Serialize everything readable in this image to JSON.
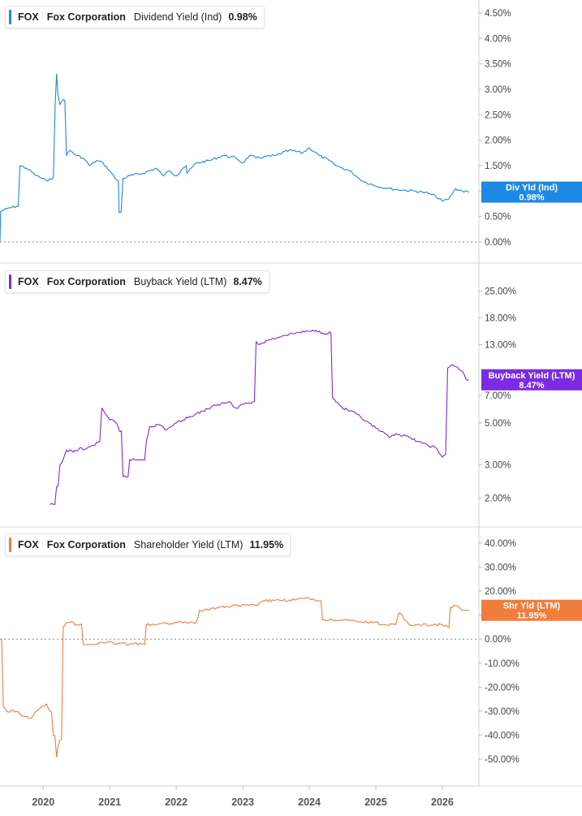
{
  "chart_data": [
    {
      "type": "line",
      "ticker": "FOX",
      "company": "Fox Corporation",
      "metric": "Dividend Yield (Ind)",
      "current_value": "0.98%",
      "badge": "Div Yld (Ind)",
      "color": "#1e88e5",
      "scale": "linear",
      "ylim": [
        0,
        4.5
      ],
      "y_ticks": [
        "0.00%",
        "0.50%",
        "1.00%",
        "1.50%",
        "2.00%",
        "2.50%",
        "3.00%",
        "3.50%",
        "4.00%",
        "4.50%"
      ],
      "zero_line": true,
      "series": [
        {
          "x": [
            2019.35,
            2019.36,
            2019.45,
            2019.6,
            2019.65,
            2019.75,
            2019.9,
            2020.05,
            2020.1,
            2020.18,
            2020.2,
            2020.22,
            2020.25,
            2020.3,
            2020.35,
            2020.4,
            2020.5,
            2020.6,
            2020.7,
            2020.8,
            2020.9,
            2021.0,
            2021.08,
            2021.13,
            2021.14,
            2021.2,
            2021.3,
            2021.5,
            2021.7,
            2021.8,
            2021.9,
            2022.0,
            2022.1,
            2022.15,
            2022.16,
            2022.3,
            2022.5,
            2022.7,
            2022.9,
            2023.0,
            2023.1,
            2023.2,
            2023.5,
            2023.7,
            2023.9,
            2024.0,
            2024.15,
            2024.3,
            2024.4,
            2024.5,
            2024.6,
            2024.65,
            2024.7,
            2024.8,
            2025.0,
            2025.2,
            2025.4,
            2025.6,
            2025.7,
            2025.8,
            2025.9,
            2026.0,
            2026.1,
            2026.2,
            2026.3,
            2026.4
          ],
          "y": [
            0,
            0.6,
            0.65,
            0.7,
            1.5,
            1.45,
            1.3,
            1.2,
            1.25,
            2.7,
            3.3,
            2.9,
            2.7,
            2.8,
            1.7,
            1.8,
            1.7,
            1.65,
            1.5,
            1.6,
            1.55,
            1.4,
            1.25,
            1.2,
            0.58,
            1.25,
            1.3,
            1.35,
            1.45,
            1.3,
            1.4,
            1.3,
            1.45,
            1.5,
            1.35,
            1.55,
            1.6,
            1.7,
            1.65,
            1.55,
            1.7,
            1.65,
            1.7,
            1.8,
            1.75,
            1.85,
            1.7,
            1.6,
            1.5,
            1.45,
            1.4,
            1.35,
            1.3,
            1.2,
            1.1,
            1.05,
            1.02,
            1.0,
            0.98,
            0.95,
            0.9,
            0.8,
            0.85,
            1.05,
            1.0,
            0.98
          ]
        }
      ]
    },
    {
      "type": "line",
      "ticker": "FOX",
      "company": "Fox Corporation",
      "metric": "Buyback Yield (LTM)",
      "current_value": "8.47%",
      "badge": "Buyback Yield (LTM)",
      "color": "#7b2be2",
      "scale": "log",
      "ylim": [
        1.7,
        30
      ],
      "y_ticks": [
        "2.00%",
        "3.00%",
        "5.00%",
        "7.00%",
        "13.00%",
        "18.00%",
        "25.00%"
      ],
      "zero_line": false,
      "series": [
        {
          "x": [
            2020.1,
            2020.2,
            2020.25,
            2020.3,
            2020.35,
            2020.45,
            2020.55,
            2020.6,
            2020.75,
            2020.85,
            2020.88,
            2021.0,
            2021.1,
            2021.15,
            2021.2,
            2021.3,
            2021.5,
            2021.55,
            2021.6,
            2021.75,
            2021.85,
            2022.0,
            2022.2,
            2022.4,
            2022.6,
            2022.8,
            2022.9,
            2023.0,
            2023.1,
            2023.2,
            2023.25,
            2023.3,
            2023.4,
            2023.6,
            2023.8,
            2024.0,
            2024.1,
            2024.2,
            2024.35,
            2024.5,
            2024.7,
            2024.85,
            2025.0,
            2025.2,
            2025.3,
            2025.5,
            2025.7,
            2025.9,
            2026.0,
            2026.05,
            2026.08,
            2026.15,
            2026.25,
            2026.3,
            2026.35,
            2026.4
          ],
          "y": [
            1.85,
            2.3,
            3.0,
            3.2,
            3.6,
            3.5,
            3.7,
            3.6,
            3.8,
            4.0,
            6.0,
            5.2,
            5.0,
            4.5,
            2.6,
            3.2,
            3.2,
            4.0,
            4.8,
            4.9,
            4.6,
            5.0,
            5.4,
            5.8,
            6.2,
            6.5,
            6.0,
            6.3,
            6.4,
            13.5,
            13.0,
            13.3,
            13.8,
            14.5,
            15.0,
            15.3,
            15.5,
            15.0,
            6.8,
            6.0,
            5.6,
            5.1,
            4.7,
            4.2,
            4.4,
            4.2,
            3.9,
            3.7,
            3.3,
            3.4,
            9.8,
            10.2,
            9.6,
            9.4,
            8.6,
            8.47
          ]
        }
      ]
    },
    {
      "type": "line",
      "ticker": "FOX",
      "company": "Fox Corporation",
      "metric": "Shareholder Yield (LTM)",
      "current_value": "11.95%",
      "badge": "Shr Yld (LTM)",
      "color": "#f07d3c",
      "scale": "linear",
      "ylim": [
        -55,
        45
      ],
      "y_ticks": [
        "-50.00%",
        "-40.00%",
        "-30.00%",
        "-20.00%",
        "-10.00%",
        "0.00%",
        "10.00%",
        "20.00%",
        "30.00%",
        "40.00%"
      ],
      "zero_line": true,
      "series": [
        {
          "x": [
            2019.35,
            2019.4,
            2019.45,
            2019.6,
            2019.7,
            2019.8,
            2019.9,
            2020.0,
            2020.05,
            2020.1,
            2020.15,
            2020.2,
            2020.22,
            2020.25,
            2020.3,
            2020.35,
            2020.4,
            2020.55,
            2020.6,
            2020.8,
            2021.0,
            2021.1,
            2021.5,
            2021.55,
            2021.7,
            2022.0,
            2022.3,
            2022.35,
            2022.6,
            2022.9,
            2023.2,
            2023.3,
            2023.6,
            2024.0,
            2024.1,
            2024.2,
            2024.5,
            2024.8,
            2025.0,
            2025.1,
            2025.3,
            2025.35,
            2025.5,
            2025.7,
            2026.0,
            2026.08,
            2026.12,
            2026.2,
            2026.3,
            2026.4
          ],
          "y": [
            0,
            -28,
            -30,
            -30,
            -32,
            -33,
            -30,
            -28,
            -27,
            -30,
            -40,
            -49,
            -45,
            -42,
            5,
            7,
            7,
            6,
            -2,
            -2,
            -1,
            -2,
            -2,
            6,
            6,
            7,
            7,
            12,
            13,
            14,
            14,
            16,
            16,
            17,
            16,
            8,
            8,
            7,
            7,
            6,
            6,
            11,
            6,
            6,
            6,
            5,
            13,
            14,
            12,
            12
          ]
        }
      ]
    }
  ],
  "x_axis": {
    "min": 2019.35,
    "max": 2026.55,
    "ticks": [
      "2020",
      "2021",
      "2022",
      "2023",
      "2024",
      "2025",
      "2026"
    ]
  }
}
